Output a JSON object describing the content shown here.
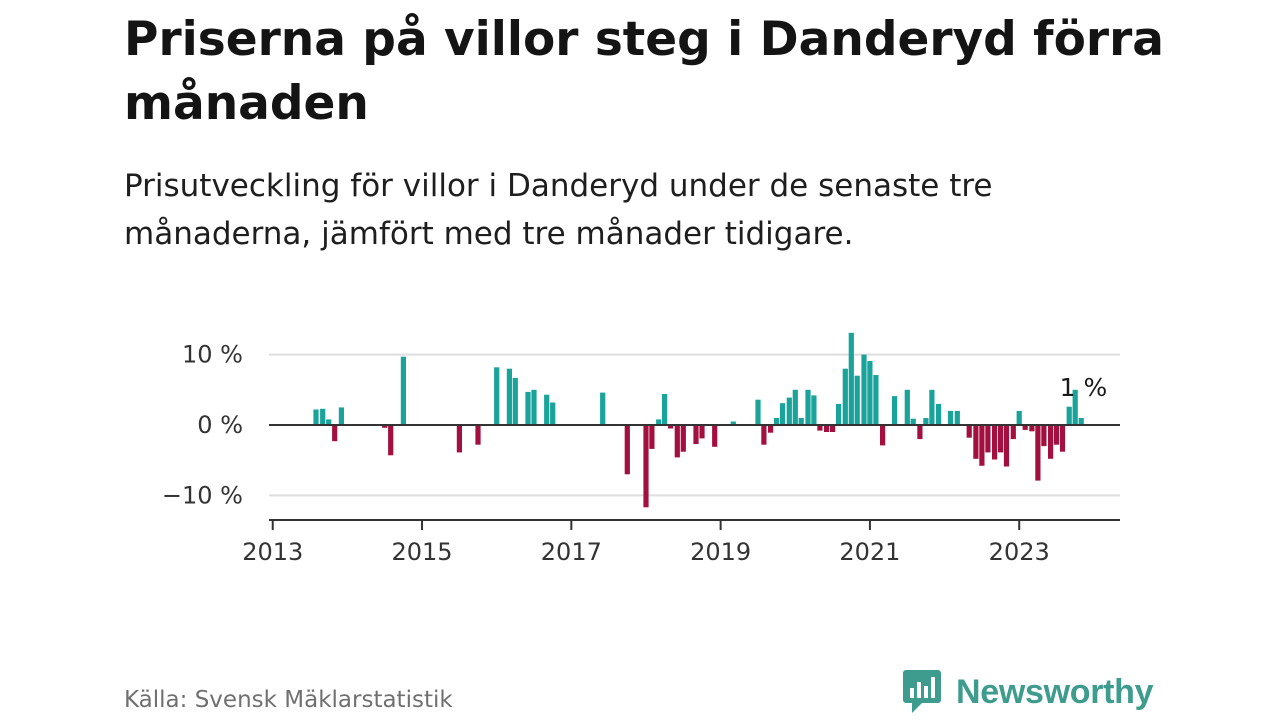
{
  "header": {
    "title": "Priserna på villor steg i Danderyd förra månaden",
    "subtitle": "Prisutveckling för villor i Danderyd under de senaste tre månaderna, jämfört med tre månader tidigare."
  },
  "footer": {
    "source": "Källa: Svensk Mäklarstatistik",
    "brand": "Newsworthy"
  },
  "colors": {
    "positive": "#1aa39b",
    "negative": "#a3103f",
    "brand": "#3d9c8d"
  },
  "chart_data": {
    "type": "bar",
    "title": "Priserna på villor steg i Danderyd förra månaden",
    "ylabel": "",
    "xlabel": "",
    "ylim": [
      -13.5,
      13.5
    ],
    "xlim": [
      2012.95,
      2024.35
    ],
    "y_ticks": [
      10,
      0,
      -10
    ],
    "y_tick_labels": [
      "10 %",
      "0 %",
      "−10 %"
    ],
    "x_ticks": [
      2013,
      2015,
      2017,
      2019,
      2021,
      2023
    ],
    "x_tick_labels": [
      "2013",
      "2015",
      "2017",
      "2019",
      "2021",
      "2023"
    ],
    "annotation": {
      "text": "1 %",
      "x": 2023.86,
      "y": 4.1
    },
    "series": [
      {
        "name": "Prisutveckling",
        "x": [
          2013.58,
          2013.67,
          2013.75,
          2013.83,
          2013.92,
          2014.5,
          2014.58,
          2014.75,
          2015.5,
          2015.75,
          2016.0,
          2016.17,
          2016.25,
          2016.42,
          2016.5,
          2016.67,
          2016.75,
          2017.42,
          2017.75,
          2018.0,
          2018.08,
          2018.17,
          2018.25,
          2018.33,
          2018.42,
          2018.5,
          2018.67,
          2018.75,
          2018.92,
          2019.17,
          2019.5,
          2019.58,
          2019.67,
          2019.75,
          2019.83,
          2019.92,
          2020.0,
          2020.08,
          2020.17,
          2020.25,
          2020.33,
          2020.42,
          2020.5,
          2020.58,
          2020.67,
          2020.75,
          2020.83,
          2020.92,
          2021.0,
          2021.08,
          2021.17,
          2021.33,
          2021.5,
          2021.58,
          2021.67,
          2021.75,
          2021.83,
          2021.92,
          2022.08,
          2022.17,
          2022.33,
          2022.42,
          2022.5,
          2022.58,
          2022.67,
          2022.75,
          2022.83,
          2022.92,
          2023.0,
          2023.08,
          2023.17,
          2023.25,
          2023.33,
          2023.42,
          2023.5,
          2023.58,
          2023.67,
          2023.75,
          2023.83
        ],
        "values": [
          2.2,
          2.3,
          0.8,
          -2.3,
          2.5,
          -0.4,
          -4.3,
          9.7,
          -3.9,
          -2.8,
          8.2,
          8.0,
          6.7,
          4.7,
          5.0,
          4.3,
          3.2,
          4.6,
          -7.0,
          -11.7,
          -3.4,
          0.8,
          4.4,
          -0.5,
          -4.6,
          -3.8,
          -2.7,
          -1.9,
          -3.1,
          0.5,
          3.6,
          -2.8,
          -1.1,
          1.0,
          3.1,
          3.9,
          5.0,
          1.0,
          5.0,
          4.2,
          -0.8,
          -1.0,
          -1.0,
          3.0,
          8.0,
          13.1,
          7.0,
          10.0,
          9.1,
          7.1,
          -2.9,
          4.1,
          5.0,
          0.9,
          -2.0,
          1.0,
          5.0,
          3.0,
          2.0,
          2.0,
          -1.8,
          -4.8,
          -5.8,
          -3.9,
          -4.9,
          -3.9,
          -5.9,
          -2.0,
          2.0,
          -0.7,
          -0.9,
          -7.9,
          -3.0,
          -4.8,
          -2.8,
          -3.8,
          2.6,
          5.0,
          1.0
        ]
      }
    ]
  }
}
